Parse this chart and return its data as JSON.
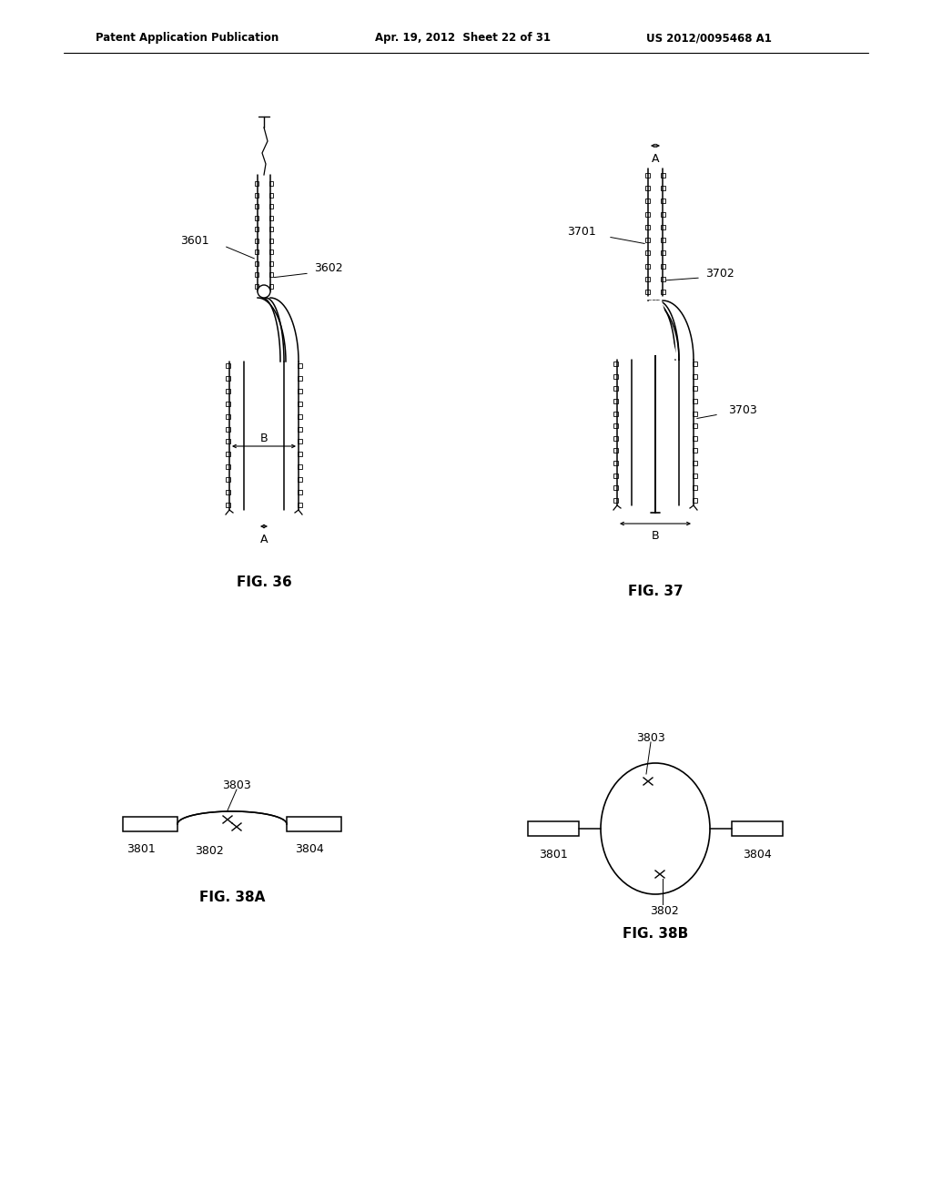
{
  "background_color": "#ffffff",
  "text_color": "#000000",
  "line_color": "#000000",
  "header_left": "Patent Application Publication",
  "header_center": "Apr. 19, 2012  Sheet 22 of 31",
  "header_right": "US 2012/0095468 A1",
  "fig36_title": "FIG. 36",
  "fig37_title": "FIG. 37",
  "fig38a_title": "FIG. 38A",
  "fig38b_title": "FIG. 38B"
}
